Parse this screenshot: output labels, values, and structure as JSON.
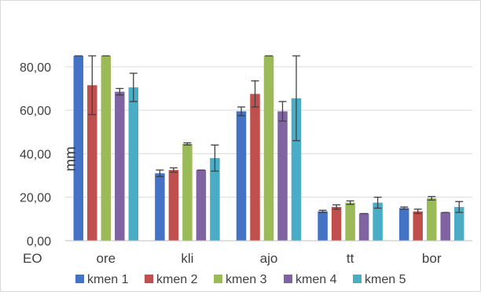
{
  "chart_data": {
    "type": "bar",
    "title": "",
    "xlabel": "EO",
    "ylabel": "mm",
    "ylim": [
      0,
      85
    ],
    "yticks": [
      "0,00",
      "20,00",
      "40,00",
      "60,00",
      "80,00"
    ],
    "ytick_values": [
      0,
      20,
      40,
      60,
      80
    ],
    "grid": true,
    "legend_position": "bottom",
    "categories": [
      "ore",
      "kli",
      "ajo",
      "tt",
      "bor"
    ],
    "series": [
      {
        "name": "kmen 1",
        "color": "#4472C4",
        "values": [
          85,
          31,
          59.5,
          13.5,
          15
        ],
        "errors": [
          0,
          1.5,
          2,
          0.5,
          0.5
        ]
      },
      {
        "name": "kmen 2",
        "color": "#C0504D",
        "values": [
          71.5,
          32.5,
          67.5,
          15.5,
          13.5
        ],
        "errors": [
          13.5,
          1,
          6,
          1,
          1
        ]
      },
      {
        "name": "kmen 3",
        "color": "#9BBB59",
        "values": [
          85,
          44.5,
          85,
          17.5,
          19.5
        ],
        "errors": [
          0,
          0.5,
          0,
          0.8,
          0.8
        ]
      },
      {
        "name": "kmen 4",
        "color": "#8064A2",
        "values": [
          68.5,
          32.5,
          59.5,
          12.5,
          13
        ],
        "errors": [
          1.5,
          0,
          4.5,
          0,
          0
        ]
      },
      {
        "name": "kmen 5",
        "color": "#4BACC6",
        "values": [
          70.5,
          38,
          65.5,
          17.5,
          15.5
        ],
        "errors": [
          6.5,
          6,
          19.5,
          2.5,
          2.5
        ]
      }
    ]
  }
}
